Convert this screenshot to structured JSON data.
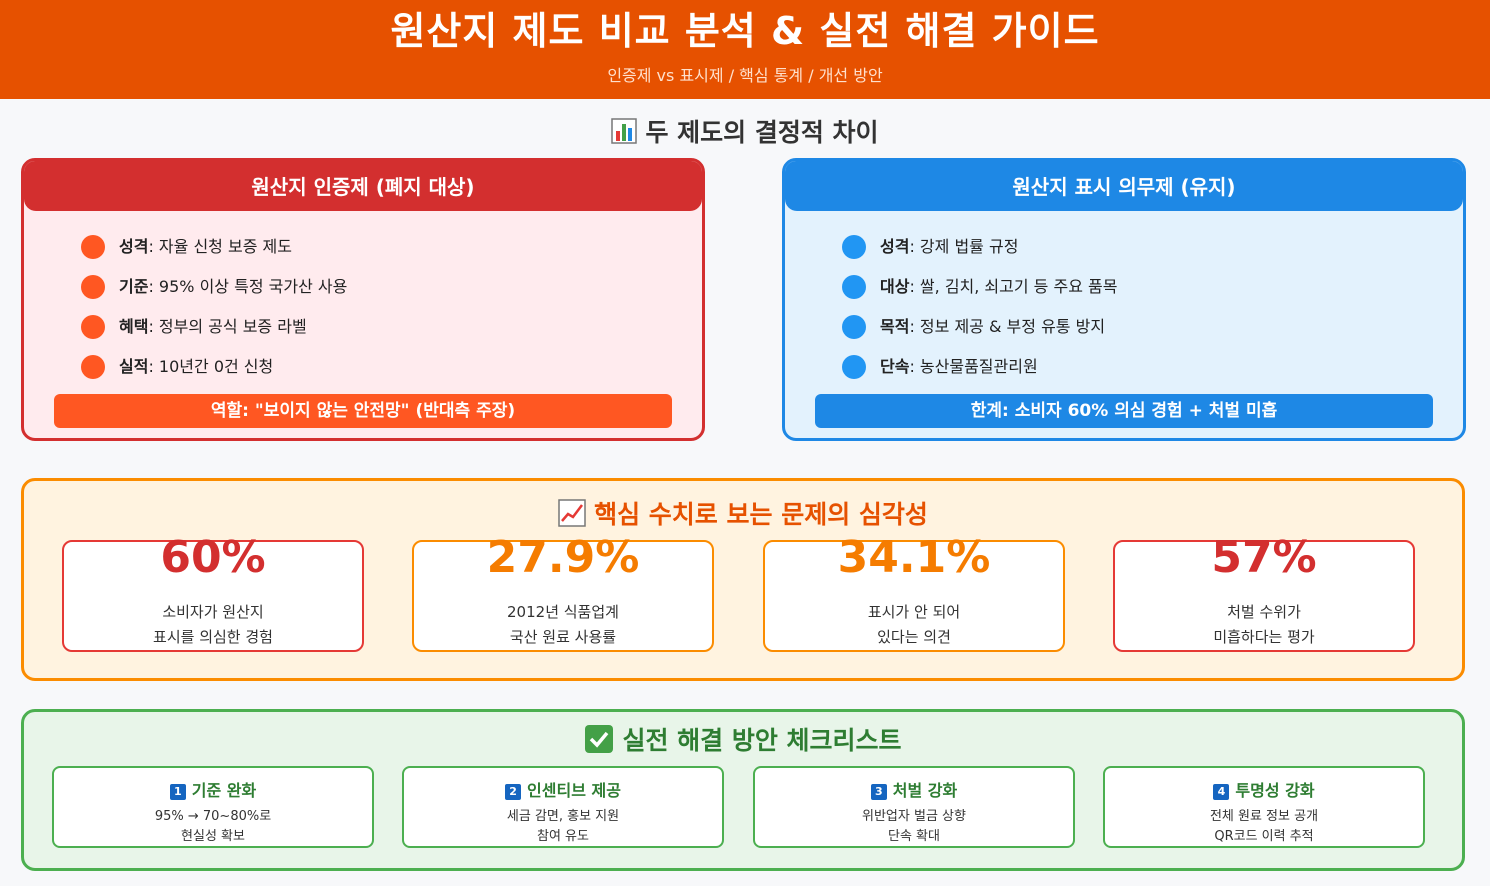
{
  "header": {
    "title": "원산지 제도 비교 분석 & 실전 해결 가이드",
    "subtitle": "인증제 vs 표시제 / 핵심 통계 / 개선 방안"
  },
  "diff": {
    "title": "두 제도의 결정적 차이",
    "icon": "bar-chart-icon",
    "left": {
      "title": "원산지 인증제 (폐지 대상)",
      "color": "#d32f2f",
      "items": [
        {
          "label": "성격",
          "text": ": 자율 신청 보증 제도"
        },
        {
          "label": "기준",
          "text": ": 95% 이상 특정 국가산 사용"
        },
        {
          "label": "혜택",
          "text": ": 정부의 공식 보증 라벨"
        },
        {
          "label": "실적",
          "text": ": 10년간 0건 신청"
        }
      ],
      "note": "역할: \"보이지 않는 안전망\" (반대측 주장)"
    },
    "right": {
      "title": "원산지 표시 의무제 (유지)",
      "color": "#1e88e5",
      "items": [
        {
          "label": "성격",
          "text": ": 강제 법률 규정"
        },
        {
          "label": "대상",
          "text": ": 쌀, 김치, 쇠고기 등 주요 품목"
        },
        {
          "label": "목적",
          "text": ": 정보 제공 & 부정 유통 방지"
        },
        {
          "label": "단속",
          "text": ": 농산물품질관리원"
        }
      ],
      "note": "한계: 소비자 60% 의심 경험 + 처벌 미흡"
    }
  },
  "stats": {
    "title": "핵심 수치로 보는 문제의 심각성",
    "icon": "trend-chart-icon",
    "items": [
      {
        "value": "60%",
        "line1": "소비자가 원산지",
        "line2": "표시를 의심한 경험",
        "color": "#d32f2f"
      },
      {
        "value": "27.9%",
        "line1": "2012년 식품업계",
        "line2": "국산 원료 사용률",
        "color": "#f57c00"
      },
      {
        "value": "34.1%",
        "line1": "표시가 안 되어",
        "line2": "있다는 의견",
        "color": "#f57c00"
      },
      {
        "value": "57%",
        "line1": "처벌 수위가",
        "line2": "미흡하다는 평가",
        "color": "#d32f2f"
      }
    ]
  },
  "checklist": {
    "title": "실전 해결 방안 체크리스트",
    "icon": "check-mark-icon",
    "items": [
      {
        "num": "1",
        "title": "기준 완화",
        "line1": "95% → 70~80%로",
        "line2": "현실성 확보"
      },
      {
        "num": "2",
        "title": "인센티브 제공",
        "line1": "세금 감면, 홍보 지원",
        "line2": "참여 유도"
      },
      {
        "num": "3",
        "title": "처벌 강화",
        "line1": "위반업자 벌금 상향",
        "line2": "단속 확대"
      },
      {
        "num": "4",
        "title": "투명성 강화",
        "line1": "전체 원료 정보 공개",
        "line2": "QR코드 이력 추적"
      }
    ]
  }
}
